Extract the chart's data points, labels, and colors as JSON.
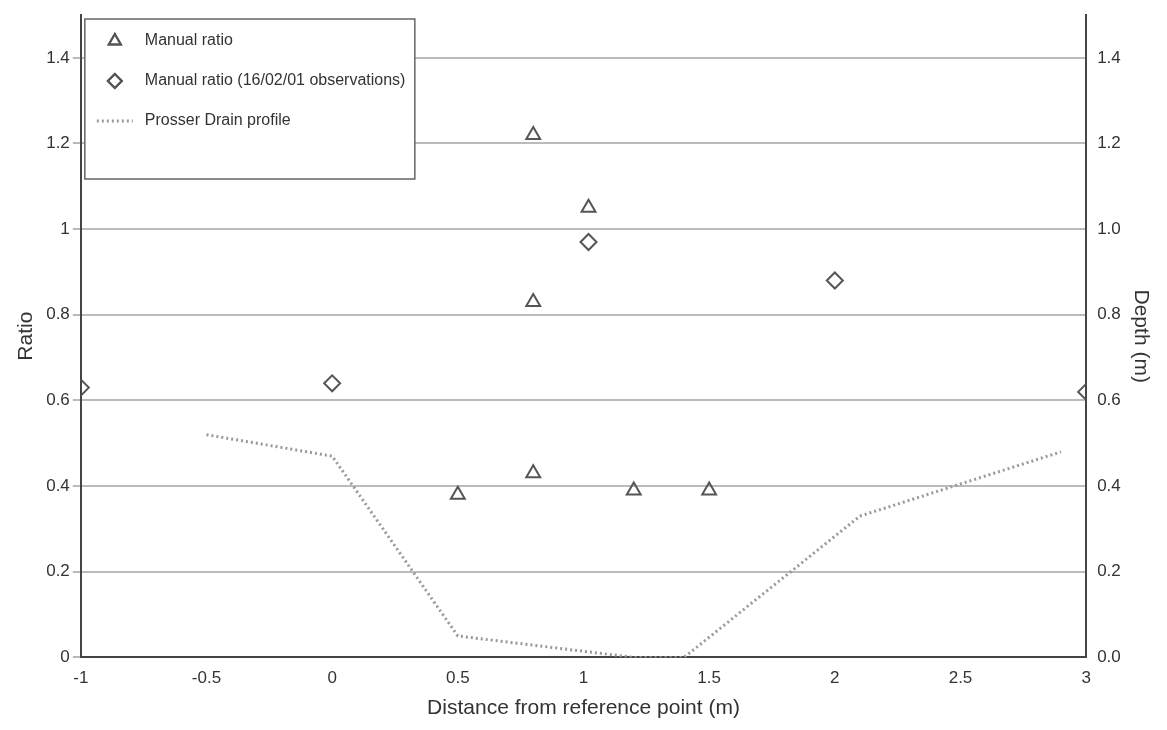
{
  "chart_data": {
    "type": "scatter",
    "xlabel": "Distance from reference point (m)",
    "ylabel": "Ratio",
    "y2label": "Depth (m)",
    "xlim": [
      -1,
      3
    ],
    "xticks": [
      -1,
      -0.5,
      0,
      0.5,
      1,
      1.5,
      2,
      2.5,
      3
    ],
    "ylim": [
      0,
      1.5
    ],
    "yticks": [
      0,
      0.2,
      0.4,
      0.6,
      0.8,
      1,
      1.2,
      1.4
    ],
    "y2lim": [
      0,
      1.5
    ],
    "y2ticks": [
      {
        "value": 0,
        "label": "0.0"
      },
      {
        "value": 0.2,
        "label": "0.2"
      },
      {
        "value": 0.4,
        "label": "0.4"
      },
      {
        "value": 0.6,
        "label": "0.6"
      },
      {
        "value": 0.8,
        "label": "0.8"
      },
      {
        "value": 1,
        "label": "1.0"
      },
      {
        "value": 1.2,
        "label": "1.2"
      },
      {
        "value": 1.4,
        "label": "1.4"
      }
    ],
    "grid": "y",
    "legend": "top left",
    "series": [
      {
        "name": "Manual ratio",
        "marker": "triangle",
        "color": "#555555",
        "x": [
          0.8,
          1.02,
          0.8,
          0.8,
          0.5,
          1.2,
          1.5
        ],
        "values": [
          1.22,
          1.05,
          0.83,
          0.43,
          0.38,
          0.39,
          0.39
        ]
      },
      {
        "name": "Manual ratio (16/02/01 observations)",
        "marker": "diamond",
        "color": "#555555",
        "x": [
          -1,
          0,
          1.02,
          2,
          3
        ],
        "values": [
          0.63,
          0.64,
          0.97,
          0.88,
          0.62
        ]
      },
      {
        "name": "Prosser Drain profile",
        "type": "line",
        "marker": "none",
        "line_style": "dotted",
        "axis": "y2",
        "color": "#999999",
        "x": [
          -0.5,
          0,
          0.5,
          1.2,
          1.4,
          2.1,
          2.9
        ],
        "values": [
          0.52,
          0.47,
          0.05,
          0,
          0,
          0.33,
          0.48
        ]
      }
    ]
  }
}
